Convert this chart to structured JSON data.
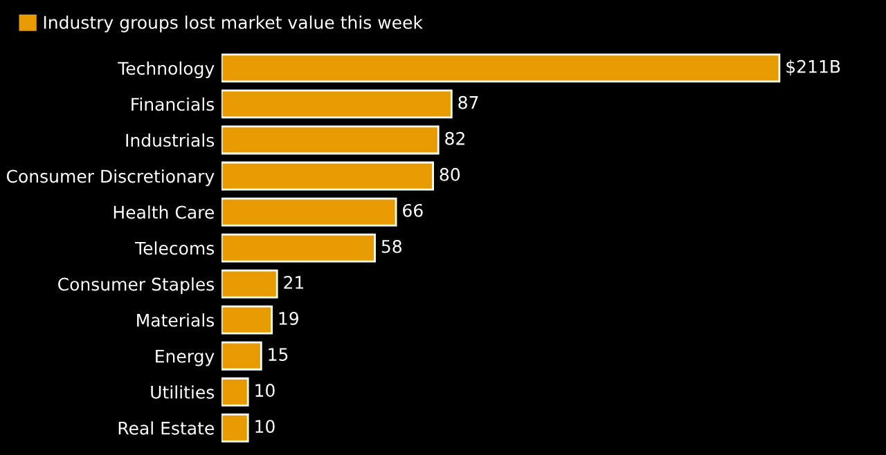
{
  "chart_data": {
    "type": "bar",
    "orientation": "horizontal",
    "categories": [
      "Technology",
      "Financials",
      "Industrials",
      "Consumer Discretionary",
      "Health Care",
      "Telecoms",
      "Consumer Staples",
      "Materials",
      "Energy",
      "Utilities",
      "Real Estate"
    ],
    "series": [
      {
        "name": "Industry groups lost market value this week",
        "color": "#e89b00",
        "values": [
          211,
          87,
          82,
          80,
          66,
          58,
          21,
          19,
          15,
          10,
          10
        ],
        "value_labels": [
          "$211B",
          "87",
          "82",
          "80",
          "66",
          "58",
          "21",
          "19",
          "15",
          "10",
          "10"
        ]
      }
    ],
    "legend": "top left",
    "grid": false
  }
}
